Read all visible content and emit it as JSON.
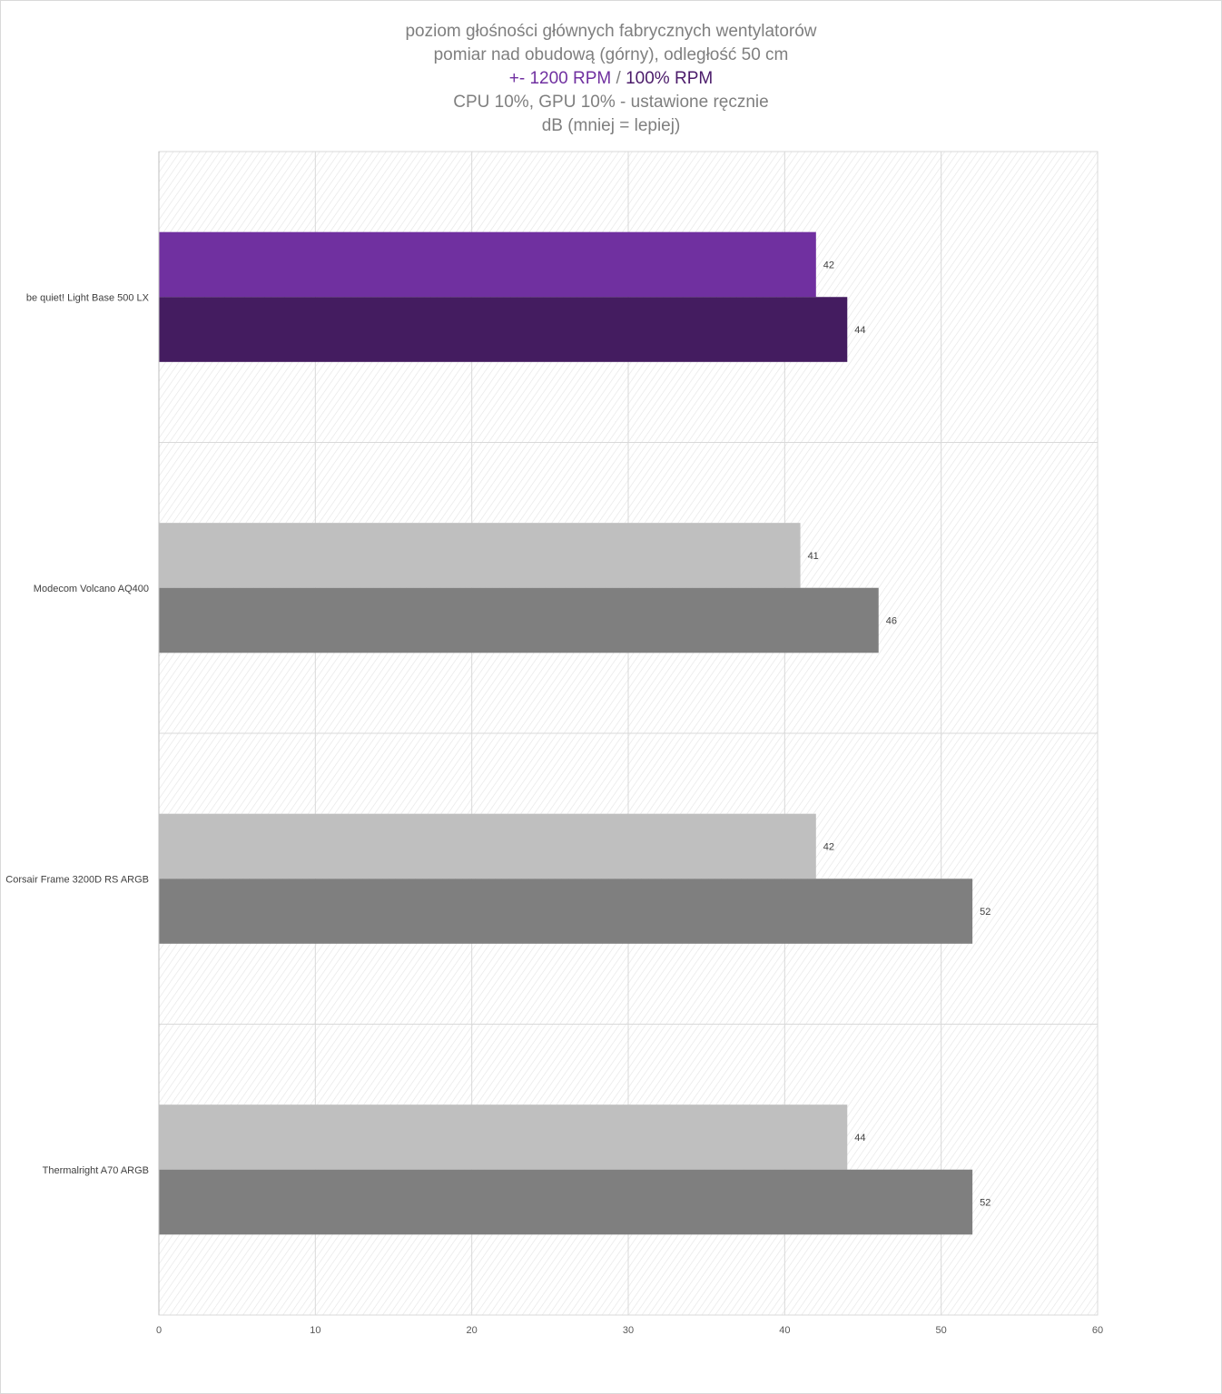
{
  "chart_data": {
    "type": "bar",
    "orientation": "horizontal",
    "title_lines": [
      "poziom głośności głównych fabrycznych wentylatorów",
      "pomiar nad obudową (górny), odległość 50 cm"
    ],
    "legend_line": {
      "series1": "+- 1200 RPM",
      "separator": " / ",
      "series2": "100% RPM"
    },
    "subtitle_lines": [
      "CPU 10%, GPU 10% - ustawione ręcznie",
      "dB (mniej = lepiej)"
    ],
    "categories": [
      "be quiet! Light Base 500 LX",
      "Modecom Volcano AQ400",
      "Corsair Frame 3200D RS ARGB",
      "Thermalright A70 ARGB"
    ],
    "series": [
      {
        "name": "+- 1200 RPM",
        "values": [
          42,
          41,
          42,
          44
        ],
        "colors": [
          "#7030a0",
          "#bfbfbf",
          "#bfbfbf",
          "#bfbfbf"
        ]
      },
      {
        "name": "100% RPM",
        "values": [
          44,
          46,
          52,
          52
        ],
        "colors": [
          "#441c60",
          "#7f7f7f",
          "#7f7f7f",
          "#7f7f7f"
        ]
      }
    ],
    "xlim": [
      0,
      60
    ],
    "xticks": [
      0,
      10,
      20,
      30,
      40,
      50,
      60
    ],
    "grid": true
  }
}
